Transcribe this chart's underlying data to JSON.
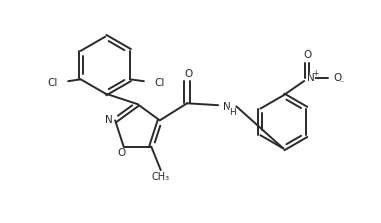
{
  "bg_color": "#ffffff",
  "line_color": "#2a2a2a",
  "line_width": 1.4,
  "figsize": [
    3.81,
    2.23
  ],
  "dpi": 100,
  "xlim": [
    0,
    10
  ],
  "ylim": [
    0,
    5.85
  ]
}
